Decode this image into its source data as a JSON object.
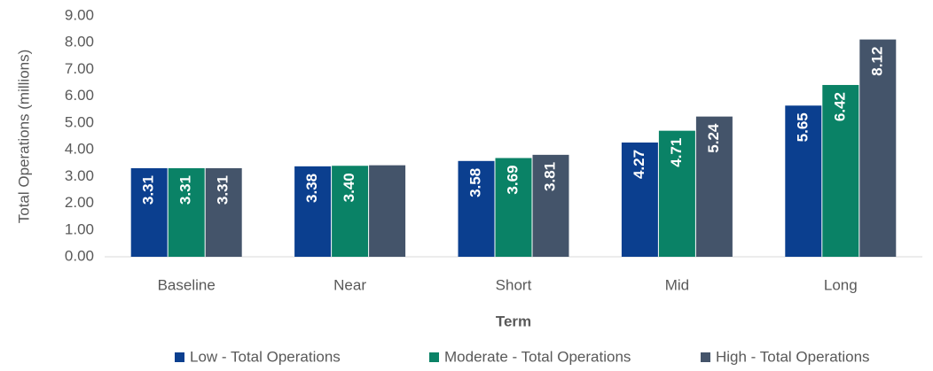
{
  "chart_data": {
    "type": "bar",
    "x_label": "Term",
    "y_label": "Total Operations (millions)",
    "categories": [
      "Baseline",
      "Near",
      "Short",
      "Mid",
      "Long"
    ],
    "series": [
      {
        "name": "Low - Total Operations",
        "color": "#0b3f8f",
        "values": [
          3.31,
          3.38,
          3.58,
          4.27,
          5.65
        ],
        "value_labels": [
          "3.31",
          "3.38",
          "3.58",
          "4.27",
          "5.65"
        ]
      },
      {
        "name": "Moderate - Total Operations",
        "color": "#0a8266",
        "values": [
          3.31,
          3.4,
          3.69,
          4.71,
          6.42
        ],
        "value_labels": [
          "3.31",
          "3.40",
          "3.69",
          "4.71",
          "6.42"
        ]
      },
      {
        "name": "High - Total Operations",
        "color": "#44546a",
        "values": [
          3.31,
          3.42,
          3.81,
          5.24,
          8.12
        ],
        "value_labels": [
          "3.31",
          null,
          "3.81",
          "5.24",
          "8.12"
        ]
      }
    ],
    "ylim": [
      0,
      9
    ],
    "yticks": [
      {
        "value": 0,
        "label": "0.00"
      },
      {
        "value": 1,
        "label": "1.00"
      },
      {
        "value": 2,
        "label": "2.00"
      },
      {
        "value": 3,
        "label": "3.00"
      },
      {
        "value": 4,
        "label": "4.00"
      },
      {
        "value": 5,
        "label": "5.00"
      },
      {
        "value": 6,
        "label": "6.00"
      },
      {
        "value": 7,
        "label": "7.00"
      },
      {
        "value": 8,
        "label": "8.00"
      },
      {
        "value": 9,
        "label": "9.00"
      }
    ],
    "grid": false,
    "legend": "bottom"
  }
}
